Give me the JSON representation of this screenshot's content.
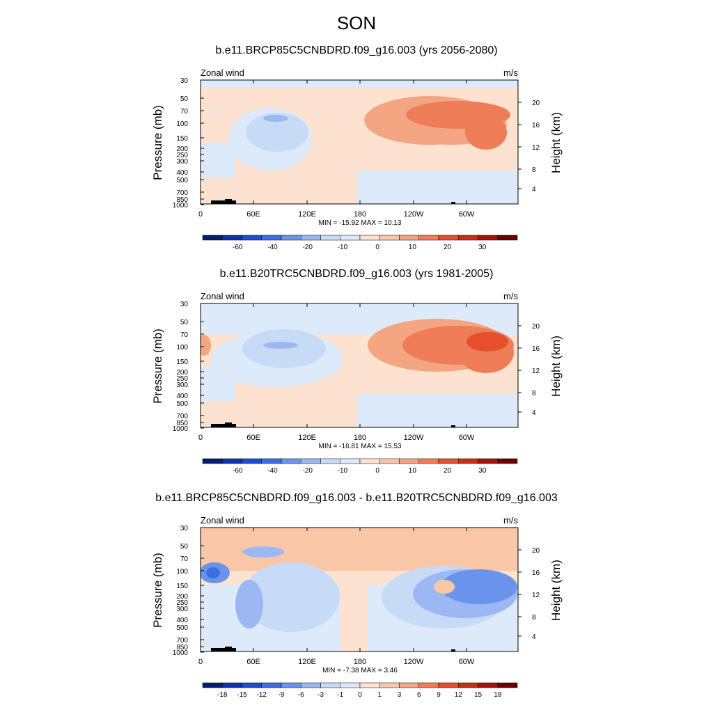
{
  "page_title": "SON",
  "chart_data": [
    {
      "type": "heatmap",
      "title": "b.e11.BRCP85C5CNBDRD.f09_g16.003 (yrs 2056-2080)",
      "left_label": "Zonal wind",
      "right_label": "m/s",
      "ylabel": "Pressure (mb)",
      "ylabel_right": "Height (km)",
      "x_ticks": [
        "0",
        "60E",
        "120E",
        "180",
        "120W",
        "60W"
      ],
      "y_ticks": [
        "30",
        "50",
        "70",
        "100",
        "150",
        "200",
        "250",
        "300",
        "400",
        "500",
        "700",
        "850",
        "1000"
      ],
      "y_ticks_right": [
        "20",
        "16",
        "12",
        "8",
        "4"
      ],
      "stats": "MIN = -15.92  MAX =  10.13",
      "min": -15.92,
      "max": 10.13,
      "colorbar_labels": [
        "-60",
        "-40",
        "-20",
        "-10",
        "0",
        "10",
        "20",
        "30"
      ],
      "colorbar_colors": [
        "#081d6e",
        "#1034a6",
        "#1c4fcf",
        "#3a6fe0",
        "#6a94eb",
        "#9cb8f2",
        "#c7dbf7",
        "#ddeaf9",
        "#fde3cf",
        "#f9c7a8",
        "#f4a582",
        "#ee7d58",
        "#e54f2c",
        "#cc2e14",
        "#a3150a",
        "#6b0000"
      ],
      "features": [
        {
          "cx": 18,
          "cy": 145,
          "rx": 5,
          "ry": 3,
          "level": -10
        },
        {
          "cx": 100,
          "cy": 185,
          "rx": 60,
          "ry": 45,
          "level": -10
        },
        {
          "cx": 110,
          "cy": 175,
          "rx": 45,
          "ry": 28,
          "level": -20
        },
        {
          "cx": 108,
          "cy": 155,
          "rx": 18,
          "ry": 5,
          "level": -40
        },
        {
          "cx": 330,
          "cy": 158,
          "rx": 95,
          "ry": 35,
          "level": 10
        },
        {
          "cx": 360,
          "cy": 165,
          "rx": 80,
          "ry": 28,
          "level": 10
        },
        {
          "cx": 370,
          "cy": 150,
          "rx": 75,
          "ry": 20,
          "level": 20
        },
        {
          "cx": 410,
          "cy": 175,
          "rx": 30,
          "ry": 25,
          "level": 20
        }
      ]
    },
    {
      "type": "heatmap",
      "title": "b.e11.B20TRC5CNBDRD.f09_g16.003 (yrs 1981-2005)",
      "left_label": "Zonal wind",
      "right_label": "m/s",
      "ylabel": "Pressure (mb)",
      "ylabel_right": "Height (km)",
      "x_ticks": [
        "0",
        "60E",
        "120E",
        "180",
        "120W",
        "60W"
      ],
      "y_ticks": [
        "30",
        "50",
        "70",
        "100",
        "150",
        "200",
        "250",
        "300",
        "400",
        "500",
        "700",
        "850",
        "1000"
      ],
      "y_ticks_right": [
        "20",
        "16",
        "12",
        "8",
        "4"
      ],
      "stats": "MIN = -16.81  MAX =  15.53",
      "min": -16.81,
      "max": 15.53,
      "colorbar_labels": [
        "-60",
        "-40",
        "-20",
        "-10",
        "0",
        "10",
        "20",
        "30"
      ],
      "colorbar_colors": [
        "#081d6e",
        "#1034a6",
        "#1c4fcf",
        "#3a6fe0",
        "#6a94eb",
        "#9cb8f2",
        "#c7dbf7",
        "#ddeaf9",
        "#fde3cf",
        "#f9c7a8",
        "#f4a582",
        "#ee7d58",
        "#e54f2c",
        "#cc2e14",
        "#a3150a",
        "#6b0000"
      ],
      "features": [
        {
          "cx": 5,
          "cy": 160,
          "rx": 10,
          "ry": 15,
          "level": 10
        },
        {
          "cx": 110,
          "cy": 180,
          "rx": 95,
          "ry": 40,
          "level": -10
        },
        {
          "cx": 120,
          "cy": 165,
          "rx": 60,
          "ry": 28,
          "level": -20
        },
        {
          "cx": 115,
          "cy": 160,
          "rx": 25,
          "ry": 5,
          "level": -40
        },
        {
          "cx": 340,
          "cy": 160,
          "rx": 100,
          "ry": 38,
          "level": 10
        },
        {
          "cx": 370,
          "cy": 160,
          "rx": 80,
          "ry": 28,
          "level": 20
        },
        {
          "cx": 410,
          "cy": 170,
          "rx": 40,
          "ry": 30,
          "level": 20
        },
        {
          "cx": 412,
          "cy": 155,
          "rx": 30,
          "ry": 14,
          "level": 30
        }
      ]
    },
    {
      "type": "heatmap",
      "title": "b.e11.BRCP85C5CNBDRD.f09_g16.003 - b.e11.B20TRC5CNBDRD.f09_g16.003",
      "left_label": "Zonal wind",
      "right_label": "m/s",
      "ylabel": "Pressure (mb)",
      "ylabel_right": "Height (km)",
      "x_ticks": [
        "0",
        "60E",
        "120E",
        "180",
        "120W",
        "60W"
      ],
      "y_ticks": [
        "30",
        "50",
        "70",
        "100",
        "150",
        "200",
        "250",
        "300",
        "400",
        "500",
        "700",
        "850",
        "1000"
      ],
      "y_ticks_right": [
        "20",
        "16",
        "12",
        "8",
        "4"
      ],
      "stats": "MIN = -7.38  MAX =  3.46",
      "min": -7.38,
      "max": 3.46,
      "colorbar_labels": [
        "-18",
        "-15",
        "-12",
        "-9",
        "-6",
        "-3",
        "-1",
        "0",
        "1",
        "3",
        "6",
        "9",
        "12",
        "15",
        "18"
      ],
      "colorbar_colors": [
        "#081d6e",
        "#1034a6",
        "#1c4fcf",
        "#3a6fe0",
        "#6a94eb",
        "#9cb8f2",
        "#c7dbf7",
        "#ddeaf9",
        "#fde3cf",
        "#f9c7a8",
        "#f4a582",
        "#ee7d58",
        "#e54f2c",
        "#cc2e14",
        "#a3150a",
        "#6b0000"
      ],
      "features": [
        {
          "cx": 130,
          "cy": 200,
          "rx": 70,
          "ry": 50,
          "level": -1
        },
        {
          "cx": 350,
          "cy": 200,
          "rx": 90,
          "ry": 45,
          "level": -1
        },
        {
          "cx": 380,
          "cy": 195,
          "rx": 75,
          "ry": 35,
          "level": -3
        },
        {
          "cx": 400,
          "cy": 185,
          "rx": 55,
          "ry": 25,
          "level": -6
        },
        {
          "cx": 20,
          "cy": 165,
          "rx": 22,
          "ry": 15,
          "level": -6
        },
        {
          "cx": 18,
          "cy": 165,
          "rx": 10,
          "ry": 8,
          "level": -9
        },
        {
          "cx": 70,
          "cy": 210,
          "rx": 20,
          "ry": 35,
          "level": -3
        },
        {
          "cx": 90,
          "cy": 135,
          "rx": 30,
          "ry": 8,
          "level": -3
        },
        {
          "cx": 350,
          "cy": 185,
          "rx": 15,
          "ry": 10,
          "level": 1
        }
      ]
    }
  ]
}
